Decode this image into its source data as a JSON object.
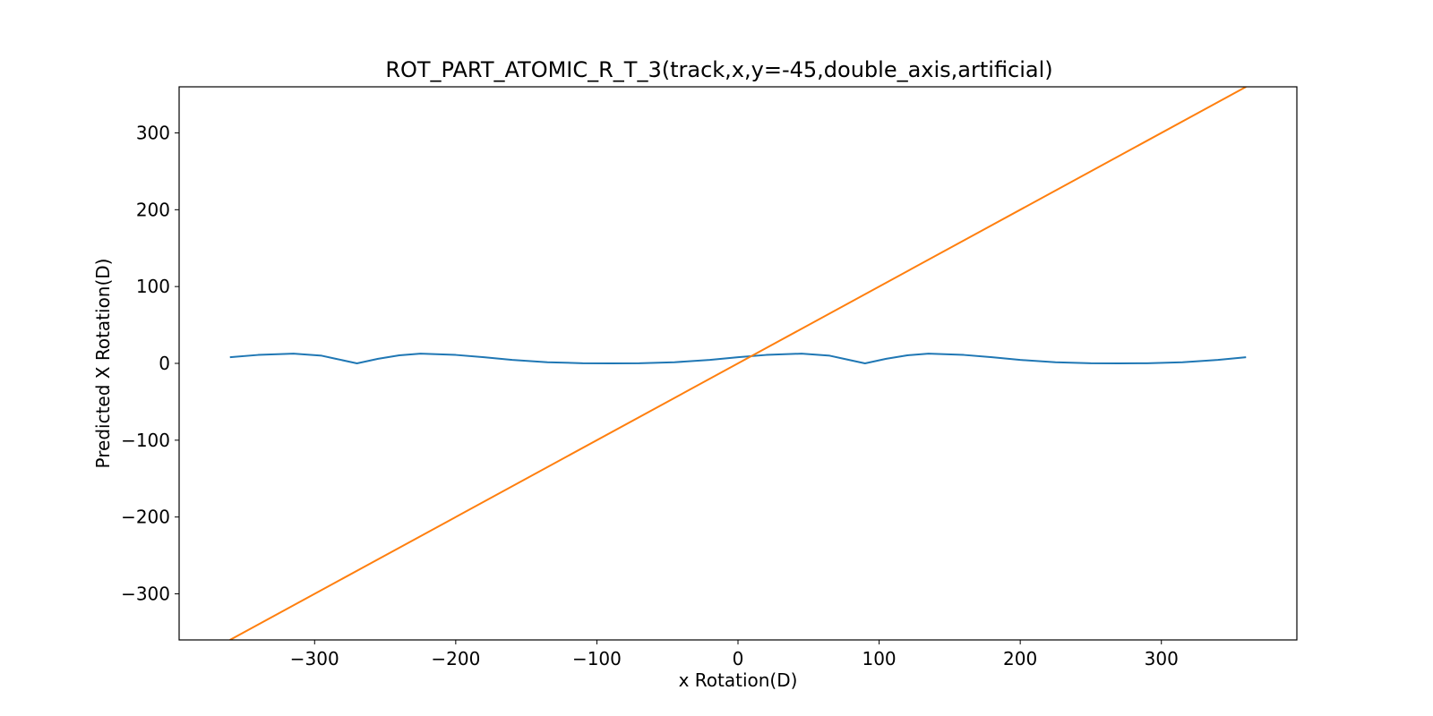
{
  "chart_data": {
    "type": "line",
    "title": "ROT_PART_ATOMIC_R_T_3(track,x,y=-45,double_axis,artificial)",
    "xlabel": "x Rotation(D)",
    "ylabel": "Predicted X Rotation(D)",
    "xlim": [
      -396,
      396
    ],
    "ylim": [
      -360,
      360
    ],
    "xticks": [
      -300,
      -200,
      -100,
      0,
      100,
      200,
      300
    ],
    "xtick_labels": [
      "−300",
      "−200",
      "−100",
      "0",
      "100",
      "200",
      "300"
    ],
    "yticks": [
      -300,
      -200,
      -100,
      0,
      100,
      200,
      300
    ],
    "ytick_labels": [
      "−300",
      "−200",
      "−100",
      "0",
      "100",
      "200",
      "300"
    ],
    "grid": false,
    "series": [
      {
        "color": "#1f77b4",
        "x": [
          -360,
          -340,
          -315,
          -295,
          -285,
          -270,
          -255,
          -240,
          -225,
          -200,
          -180,
          -160,
          -135,
          -110,
          -90,
          -70,
          -45,
          -20,
          0,
          20,
          45,
          65,
          75,
          90,
          105,
          120,
          135,
          160,
          180,
          200,
          225,
          250,
          270,
          290,
          315,
          340,
          360
        ],
        "values": [
          8,
          11,
          12.7,
          10,
          6,
          0,
          6,
          10.5,
          12.7,
          11,
          8,
          4.5,
          1.5,
          0.2,
          0,
          0.2,
          1.5,
          4.5,
          8,
          11,
          12.7,
          10,
          6,
          0,
          6,
          10.5,
          12.7,
          11,
          8,
          4.5,
          1.5,
          0.2,
          0,
          0.2,
          1.5,
          4.5,
          8
        ]
      },
      {
        "color": "#ff7f0e",
        "x": [
          -360,
          360
        ],
        "values": [
          -360,
          360
        ]
      }
    ]
  }
}
